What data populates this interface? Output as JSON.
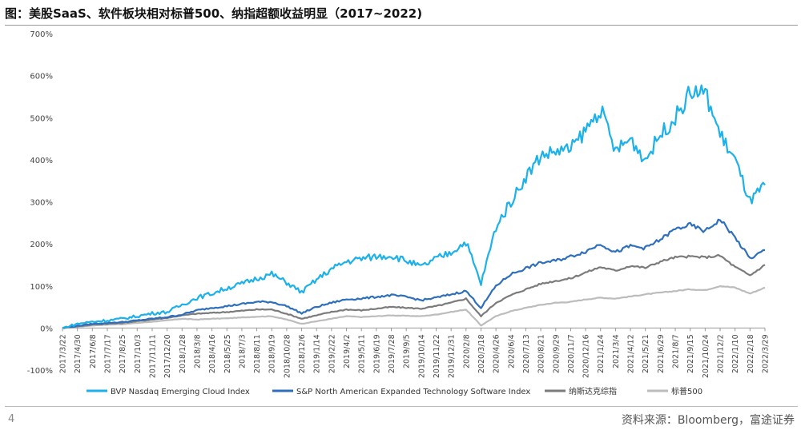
{
  "page": {
    "title": "图：美股SaaS、软件板块相对标普500、纳指超额收益明显（2017~2022)",
    "page_number": "4",
    "source": "资料来源：Bloomberg，富途证券"
  },
  "chart_data": {
    "type": "line",
    "title": "图：美股SaaS、软件板块相对标普500、纳指超额收益明显（2017~2022)",
    "ylim": [
      -100,
      700
    ],
    "y_ticks": [
      "-100%",
      "0%",
      "100%",
      "200%",
      "300%",
      "400%",
      "500%",
      "600%",
      "700%"
    ],
    "y_tick_values": [
      -100,
      0,
      100,
      200,
      300,
      400,
      500,
      600,
      700
    ],
    "x": [
      "2017/3/22",
      "2017/4/30",
      "2017/6/8",
      "2017/7/17",
      "2017/8/25",
      "2017/10/3",
      "2017/11/11",
      "2017/12/20",
      "2018/1/28",
      "2018/3/8",
      "2018/4/16",
      "2018/5/25",
      "2018/7/3",
      "2018/8/11",
      "2018/9/19",
      "2018/10/28",
      "2018/12/6",
      "2019/1/14",
      "2019/2/22",
      "2019/4/2",
      "2019/5/11",
      "2019/6/19",
      "2019/7/28",
      "2019/9/5",
      "2019/10/14",
      "2019/11/22",
      "2019/12/31",
      "2020/2/8",
      "2020/3/18",
      "2020/4/26",
      "2020/6/4",
      "2020/7/13",
      "2020/8/21",
      "2020/9/29",
      "2020/11/7",
      "2020/12/16",
      "2021/1/24",
      "2021/3/4",
      "2021/4/12",
      "2021/5/21",
      "2021/6/29",
      "2021/8/7",
      "2021/9/15",
      "2021/10/24",
      "2021/12/2",
      "2022/1/10",
      "2022/2/18",
      "2022/3/29"
    ],
    "grid": false,
    "legend_position": "bottom",
    "series": [
      {
        "name": "BVP Nasdaq Emerging Cloud Index",
        "color": "#1cb1ea",
        "values": [
          0,
          10,
          15,
          18,
          22,
          28,
          35,
          38,
          55,
          72,
          82,
          95,
          105,
          118,
          128,
          108,
          85,
          115,
          140,
          158,
          165,
          170,
          172,
          160,
          145,
          165,
          180,
          205,
          105,
          240,
          300,
          360,
          410,
          420,
          425,
          470,
          520,
          420,
          450,
          400,
          460,
          500,
          560,
          560,
          460,
          400,
          300,
          340
        ]
      },
      {
        "name": "S&P North American Expanded Technology Software Index",
        "color": "#2e6fbc",
        "values": [
          0,
          5,
          10,
          12,
          14,
          18,
          22,
          26,
          32,
          42,
          48,
          52,
          57,
          62,
          62,
          52,
          35,
          50,
          60,
          68,
          70,
          74,
          78,
          74,
          66,
          72,
          80,
          88,
          48,
          100,
          128,
          142,
          155,
          160,
          170,
          182,
          200,
          180,
          195,
          190,
          210,
          235,
          245,
          230,
          258,
          215,
          165,
          185
        ]
      },
      {
        "name": "纳斯达克综指",
        "color": "#7b7b7b",
        "values": [
          0,
          4,
          8,
          10,
          12,
          16,
          20,
          24,
          30,
          34,
          36,
          38,
          41,
          44,
          44,
          34,
          22,
          30,
          38,
          44,
          42,
          46,
          50,
          48,
          46,
          52,
          60,
          70,
          28,
          60,
          78,
          92,
          105,
          112,
          118,
          132,
          145,
          136,
          148,
          143,
          158,
          168,
          170,
          168,
          172,
          145,
          125,
          150
        ]
      },
      {
        "name": "标普500",
        "color": "#bcbcbc",
        "values": [
          0,
          3,
          6,
          8,
          9,
          12,
          15,
          18,
          22,
          20,
          22,
          23,
          25,
          27,
          28,
          20,
          10,
          16,
          22,
          28,
          26,
          28,
          30,
          29,
          28,
          32,
          38,
          44,
          6,
          28,
          40,
          48,
          55,
          60,
          62,
          68,
          72,
          70,
          75,
          80,
          84,
          88,
          92,
          90,
          100,
          96,
          82,
          96
        ]
      }
    ]
  }
}
